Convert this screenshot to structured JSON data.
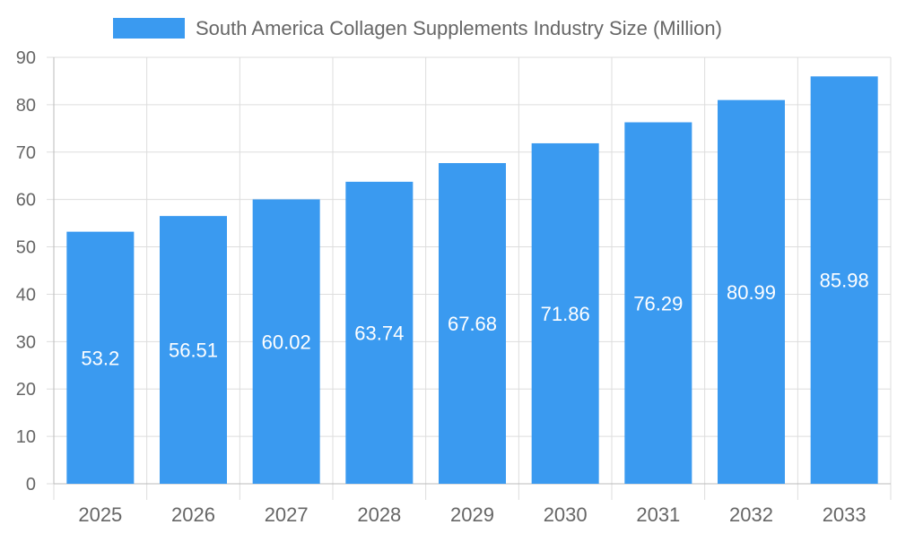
{
  "chart_data": {
    "type": "bar",
    "title": "",
    "xlabel": "",
    "ylabel": "",
    "categories": [
      "2025",
      "2026",
      "2027",
      "2028",
      "2029",
      "2030",
      "2031",
      "2032",
      "2033"
    ],
    "series": [
      {
        "name": "South America Collagen Supplements Industry Size (Million)",
        "values": [
          53.2,
          56.51,
          60.02,
          63.74,
          67.68,
          71.86,
          76.29,
          80.99,
          85.98
        ]
      }
    ],
    "ylim": [
      0,
      90
    ],
    "yticks": [
      "0",
      "10",
      "20",
      "30",
      "40",
      "50",
      "60",
      "70",
      "80",
      "90"
    ],
    "grid": true,
    "legend": "top-center",
    "data_labels": true,
    "colors": {
      "bar": "#3a9af0",
      "grid": "#dddddd",
      "axis": "#bbbbbb",
      "text": "#666666",
      "label": "#ffffff"
    }
  }
}
